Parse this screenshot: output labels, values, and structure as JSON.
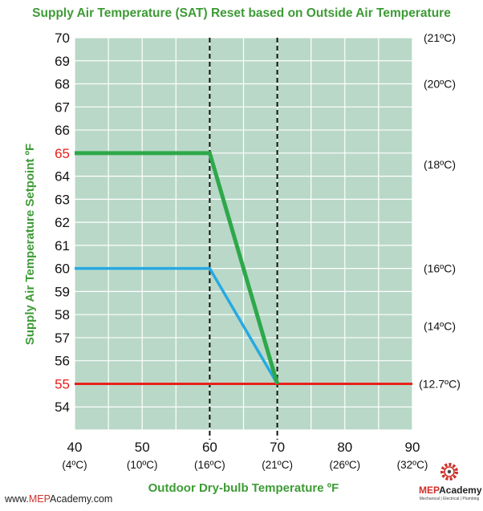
{
  "chart_data": {
    "type": "line",
    "title": "Supply Air Temperature (SAT) Reset based on Outside Air Temperature",
    "xlabel": "Outdoor Dry-bulb Temperature ºF",
    "ylabel": "Supply Air Temperature Setpoint ºF",
    "xlim": [
      40,
      90
    ],
    "ylim": [
      53,
      70
    ],
    "grid": true,
    "x_ticks": [
      {
        "value": 40,
        "label": "40",
        "sub": "(4ºC)"
      },
      {
        "value": 50,
        "label": "50",
        "sub": "(10ºC)"
      },
      {
        "value": 60,
        "label": "60",
        "sub": "(16ºC)"
      },
      {
        "value": 70,
        "label": "70",
        "sub": "(21ºC)"
      },
      {
        "value": 80,
        "label": "80",
        "sub": "(26ºC)"
      },
      {
        "value": 90,
        "label": "90",
        "sub": "(32ºC)"
      }
    ],
    "y_ticks": [
      70,
      69,
      68,
      67,
      66,
      65,
      64,
      63,
      62,
      61,
      60,
      59,
      58,
      57,
      56,
      55,
      54
    ],
    "y_ticks_highlighted": [
      65,
      55
    ],
    "right_axis_labels": [
      {
        "value": 70,
        "label": "(21ºC)"
      },
      {
        "value": 68,
        "label": "(20ºC)"
      },
      {
        "value": 64.5,
        "label": "(18ºC)"
      },
      {
        "value": 60,
        "label": "(16ºC)"
      },
      {
        "value": 57.5,
        "label": "(14ºC)"
      },
      {
        "value": 55,
        "label": "(12.7ºC)"
      }
    ],
    "series": [
      {
        "color": "#2ea84a",
        "x": [
          40,
          60,
          70
        ],
        "y": [
          65,
          65,
          55
        ]
      },
      {
        "color": "#27a9e1",
        "x": [
          40,
          60,
          70
        ],
        "y": [
          60,
          60,
          55
        ]
      },
      {
        "color": "#e8201a",
        "x": [
          40,
          90
        ],
        "y": [
          55,
          55
        ]
      }
    ],
    "reference_lines_x": [
      60,
      70
    ]
  },
  "colors": {
    "plot_background": "#b9d8c8",
    "grid": "#ffffff",
    "title": "#3d9b35",
    "highlight_tick": "#e8201a"
  },
  "footer": {
    "website_prefix": "www.",
    "website_highlight": "MEP",
    "website_suffix": "Academy.com",
    "logo_brand_red": "MEP",
    "logo_brand_dark": "Academy",
    "logo_tagline": "Mechanical | Electrical | Plumbing"
  }
}
